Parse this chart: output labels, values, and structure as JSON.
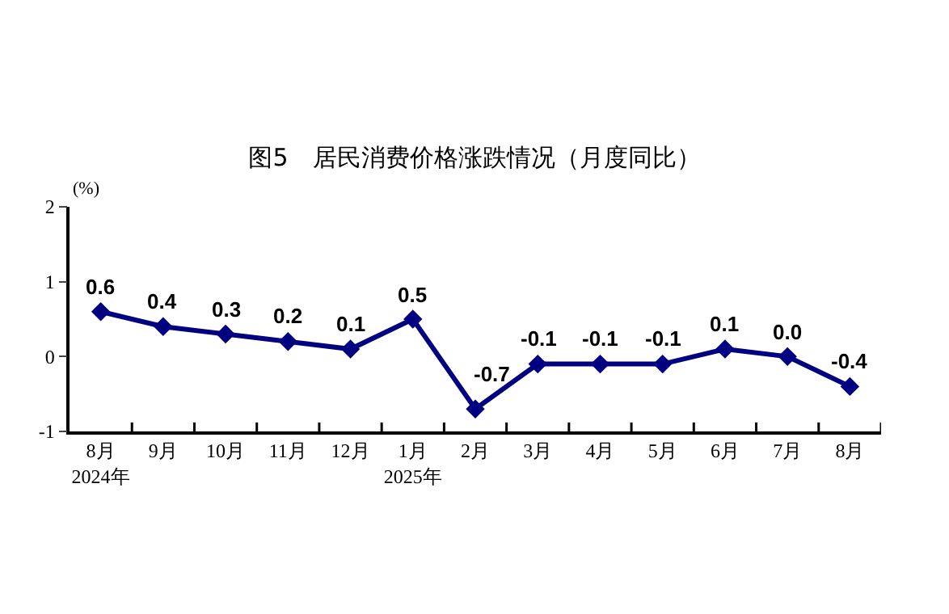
{
  "chart_data": {
    "type": "line",
    "title": "图5　居民消费价格涨跌情况（月度同比）",
    "ylabel": "(%)",
    "categories": [
      "8月\n2024年",
      "9月",
      "10月",
      "11月",
      "12月",
      "1月\n2025年",
      "2月",
      "3月",
      "4月",
      "5月",
      "6月",
      "7月",
      "8月"
    ],
    "series": [
      {
        "color": "#000080",
        "values": [
          0.6,
          0.4,
          0.3,
          0.2,
          0.1,
          0.5,
          -0.7,
          -0.1,
          -0.1,
          -0.1,
          0.1,
          0.0,
          -0.4
        ],
        "value_labels": [
          "0.6",
          "0.4",
          "0.3",
          "0.2",
          "0.1",
          "0.5",
          "-0.7",
          "-0.1",
          "-0.1",
          "-0.1",
          "0.1",
          "0.0",
          "-0.4"
        ]
      }
    ],
    "ylim": [
      -1,
      2
    ],
    "yticks": [
      -1,
      0,
      1,
      2
    ],
    "legend": false,
    "marker": "diamond",
    "line_style": "solid"
  }
}
